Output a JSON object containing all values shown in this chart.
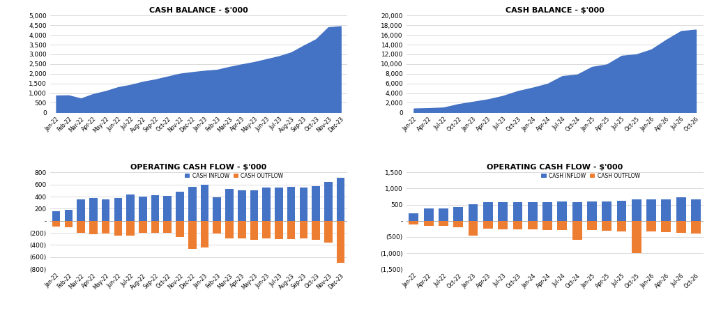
{
  "title_cash_balance": "CASH BALANCE - $'000",
  "title_op_cashflow": "OPERATING CASH FLOW - $'000",
  "area_color": "#4472C4",
  "bar_inflow_color": "#4472C4",
  "bar_outflow_color": "#ED7D31",
  "background_color": "#FFFFFF",
  "gridcolor": "#CCCCCC",
  "cb1_labels": [
    "Jan-22",
    "Feb-22",
    "Mar-22",
    "Apr-22",
    "May-22",
    "Jun-22",
    "Jul-22",
    "Aug-22",
    "Sep-22",
    "Oct-22",
    "Nov-22",
    "Dec-22",
    "Jan-23",
    "Feb-23",
    "Mar-23",
    "Apr-23",
    "May-23",
    "Jun-23",
    "Jul-23",
    "Aug-23",
    "Sep-23",
    "Oct-23",
    "Nov-23",
    "Dec-23"
  ],
  "cb1_values": [
    870,
    880,
    720,
    950,
    1100,
    1300,
    1420,
    1580,
    1700,
    1850,
    2000,
    2080,
    2150,
    2200,
    2350,
    2480,
    2600,
    2750,
    2900,
    3100,
    3450,
    3780,
    4400,
    4450
  ],
  "cb1_ylim": [
    0,
    5000
  ],
  "cb1_yticks": [
    0,
    500,
    1000,
    1500,
    2000,
    2500,
    3000,
    3500,
    4000,
    4500,
    5000
  ],
  "cb2_labels": [
    "Jan-22",
    "Apr-22",
    "Jul-22",
    "Oct-22",
    "Jan-23",
    "Apr-23",
    "Jul-23",
    "Oct-23",
    "Jan-24",
    "Apr-24",
    "Jul-24",
    "Oct-24",
    "Jan-25",
    "Apr-25",
    "Jul-25",
    "Oct-25",
    "Jan-26",
    "Apr-26",
    "Jul-26",
    "Oct-26"
  ],
  "cb2_values": [
    800,
    880,
    1000,
    1700,
    2200,
    2700,
    3400,
    4400,
    5100,
    5900,
    7500,
    7800,
    9400,
    9900,
    11700,
    12000,
    13000,
    15000,
    16800,
    17100
  ],
  "cb2_ylim": [
    0,
    20000
  ],
  "cb2_yticks": [
    0,
    2000,
    4000,
    6000,
    8000,
    10000,
    12000,
    14000,
    16000,
    18000,
    20000
  ],
  "ocf1_labels": [
    "Jan-22",
    "Feb-22",
    "Mar-22",
    "Apr-22",
    "May-22",
    "Jun-22",
    "Jul-22",
    "Aug-22",
    "Sep-22",
    "Oct-22",
    "Nov-22",
    "Dec-22",
    "Jan-23",
    "Feb-23",
    "Mar-23",
    "Apr-23",
    "May-23",
    "Jun-23",
    "Jul-23",
    "Aug-23",
    "Sep-23",
    "Oct-23",
    "Nov-23",
    "Dec-23"
  ],
  "ocf1_inflow": [
    160,
    180,
    355,
    375,
    360,
    380,
    430,
    395,
    420,
    410,
    480,
    560,
    595,
    390,
    530,
    505,
    505,
    550,
    555,
    565,
    555,
    575,
    645,
    710
  ],
  "ocf1_outflow": [
    -100,
    -110,
    -200,
    -220,
    -215,
    -250,
    -250,
    -195,
    -200,
    -195,
    -270,
    -460,
    -440,
    -210,
    -290,
    -290,
    -310,
    -295,
    -300,
    -300,
    -290,
    -310,
    -365,
    -690
  ],
  "ocf1_ylim": [
    -800,
    800
  ],
  "ocf1_yticks": [
    -800,
    -600,
    -400,
    -200,
    0,
    200,
    400,
    600,
    800
  ],
  "ocf1_yticklabels": [
    "(800)",
    "(600)",
    "(400)",
    "(200)",
    "-",
    "200",
    "400",
    "600",
    "800"
  ],
  "ocf2_labels": [
    "Jan-22",
    "Apr-22",
    "Jul-22",
    "Oct-22",
    "Jan-23",
    "Apr-23",
    "Jul-23",
    "Oct-23",
    "Jan-24",
    "Apr-24",
    "Jul-24",
    "Oct-24",
    "Jan-25",
    "Apr-25",
    "Jul-25",
    "Oct-25",
    "Jan-26",
    "Apr-26",
    "Jul-26",
    "Oct-26"
  ],
  "ocf2_inflow": [
    230,
    380,
    390,
    420,
    510,
    580,
    570,
    570,
    570,
    580,
    590,
    570,
    590,
    590,
    620,
    660,
    660,
    660,
    730,
    660
  ],
  "ocf2_outflow": [
    -120,
    -150,
    -160,
    -200,
    -470,
    -250,
    -260,
    -270,
    -270,
    -280,
    -290,
    -580,
    -295,
    -300,
    -320,
    -1000,
    -340,
    -350,
    -370,
    -400
  ],
  "ocf2_ylim": [
    -1500,
    1500
  ],
  "ocf2_yticks": [
    -1500,
    -1000,
    -500,
    0,
    500,
    1000,
    1500
  ],
  "ocf2_yticklabels": [
    "(1,500)",
    "(1,000)",
    "(500)",
    "-",
    "500",
    "1,000",
    "1,500"
  ]
}
